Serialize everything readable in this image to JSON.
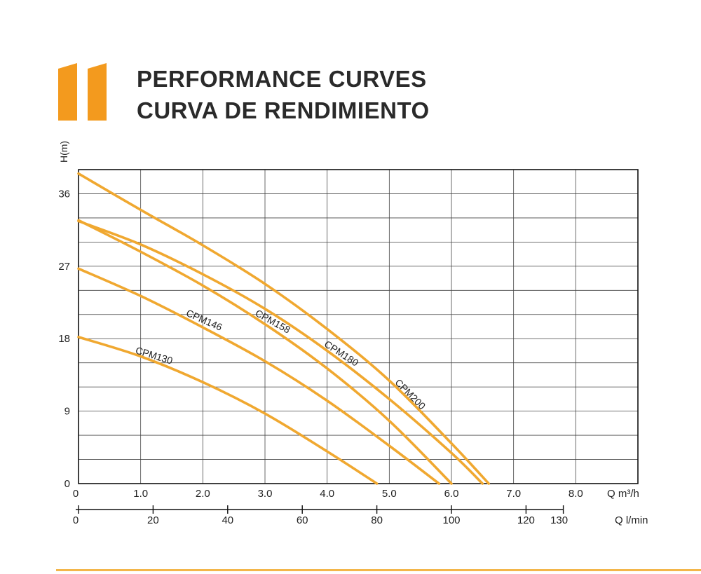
{
  "header": {
    "title_line1": "PERFORMANCE CURVES",
    "title_line2": "CURVA DE RENDIMIENTO",
    "accent_color": "#f39a1e"
  },
  "chart_data": {
    "type": "line",
    "ylabel": "H(m)",
    "xlabel": "Q m³/h",
    "xlabel_secondary": "Q l/min",
    "ylim": [
      0,
      39
    ],
    "xlim": [
      0,
      9
    ],
    "y_ticks": [
      "0",
      "9",
      "18",
      "27",
      "36"
    ],
    "x_ticks": [
      "0",
      "1.0",
      "2.0",
      "3.0",
      "4.0",
      "5.0",
      "6.0",
      "7.0",
      "8.0"
    ],
    "x_ticks_secondary": [
      "0",
      "20",
      "40",
      "60",
      "80",
      "100",
      "120",
      "130"
    ],
    "line_color": "#f0a830",
    "grid": true,
    "series": [
      {
        "name": "CPM130",
        "x": [
          0,
          1,
          2,
          3,
          4,
          4.8
        ],
        "y": [
          18.2,
          15.8,
          12.6,
          8.7,
          4.0,
          0
        ]
      },
      {
        "name": "CPM146",
        "x": [
          0,
          1,
          2,
          3,
          4,
          5,
          5.8
        ],
        "y": [
          26.7,
          23.3,
          19.4,
          15.2,
          10.3,
          4.7,
          0
        ]
      },
      {
        "name": "CPM158",
        "x": [
          0,
          1,
          2,
          3,
          4,
          5,
          6
        ],
        "y": [
          32.7,
          28.8,
          24.6,
          19.8,
          14.3,
          7.8,
          0
        ]
      },
      {
        "name": "CPM180",
        "x": [
          0,
          1,
          2,
          3,
          4,
          5,
          6,
          6.5
        ],
        "y": [
          32.6,
          29.7,
          26.0,
          21.7,
          16.5,
          10.5,
          3.8,
          0
        ]
      },
      {
        "name": "CPM200",
        "x": [
          0,
          1,
          2,
          3,
          4,
          5,
          6,
          6.6
        ],
        "y": [
          38.5,
          34.0,
          29.6,
          24.8,
          19.2,
          12.8,
          5.0,
          0
        ]
      }
    ]
  }
}
